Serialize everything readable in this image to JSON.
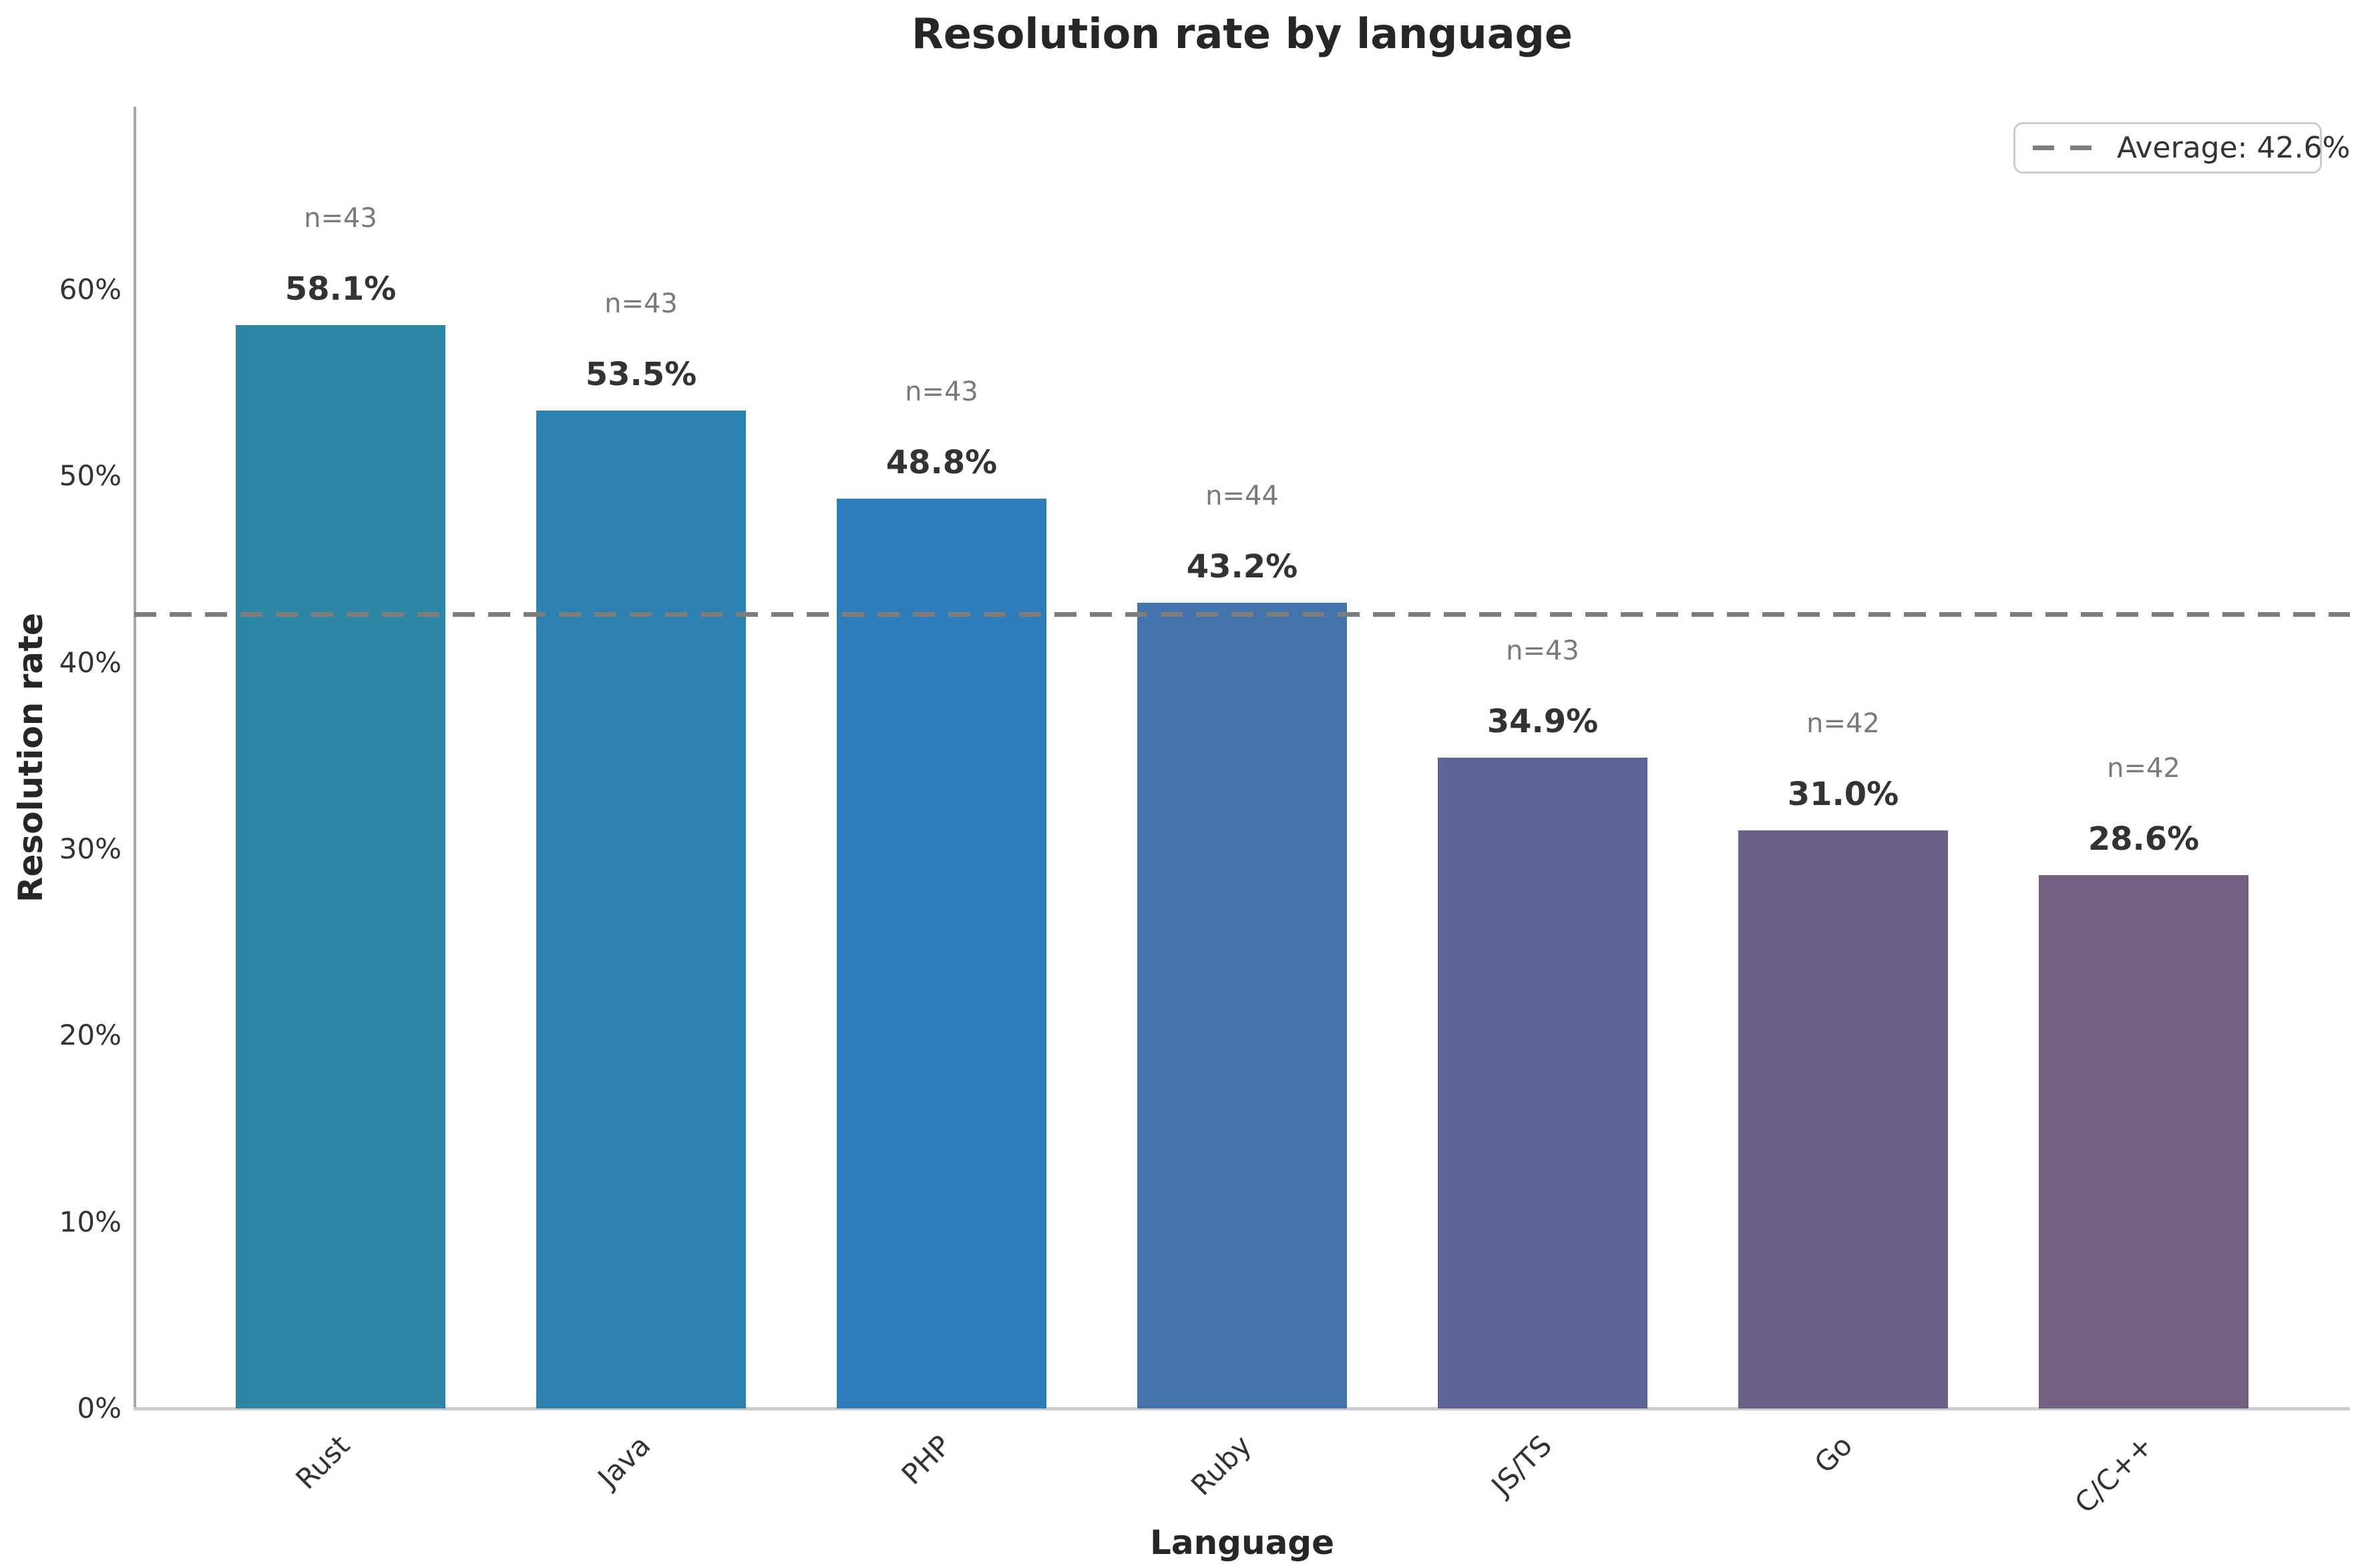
{
  "title": "Resolution rate by language",
  "legend": {
    "label": "Average: 42.6%"
  },
  "chart_data": {
    "type": "bar",
    "title": "Resolution rate by language",
    "xlabel": "Language",
    "ylabel": "Resolution rate",
    "categories": [
      "Rust",
      "Java",
      "PHP",
      "Ruby",
      "JS/TS",
      "Go",
      "C/C++"
    ],
    "values": [
      58.1,
      53.5,
      48.8,
      43.2,
      34.9,
      31.0,
      28.6
    ],
    "value_labels": [
      "58.1%",
      "53.5%",
      "48.8%",
      "43.2%",
      "34.9%",
      "31.0%",
      "28.6%"
    ],
    "n_labels": [
      "n=43",
      "n=43",
      "n=43",
      "n=44",
      "n=43",
      "n=42",
      "n=42"
    ],
    "bar_colors": [
      "#2e86a5",
      "#2d82b2",
      "#2f7cbb",
      "#4472aa",
      "#5d6596",
      "#6a6088",
      "#745f82"
    ],
    "average": 42.6,
    "average_label": "Average: 42.6%",
    "average_line_color": "#7d7d7d",
    "ylim": [
      0,
      69.8
    ],
    "ytick_values": [
      0,
      10,
      20,
      30,
      40,
      50,
      60
    ],
    "ytick_labels": [
      "0%",
      "10%",
      "20%",
      "30%",
      "40%",
      "50%",
      "60%"
    ],
    "grid": false,
    "legend_position": "upper right"
  }
}
